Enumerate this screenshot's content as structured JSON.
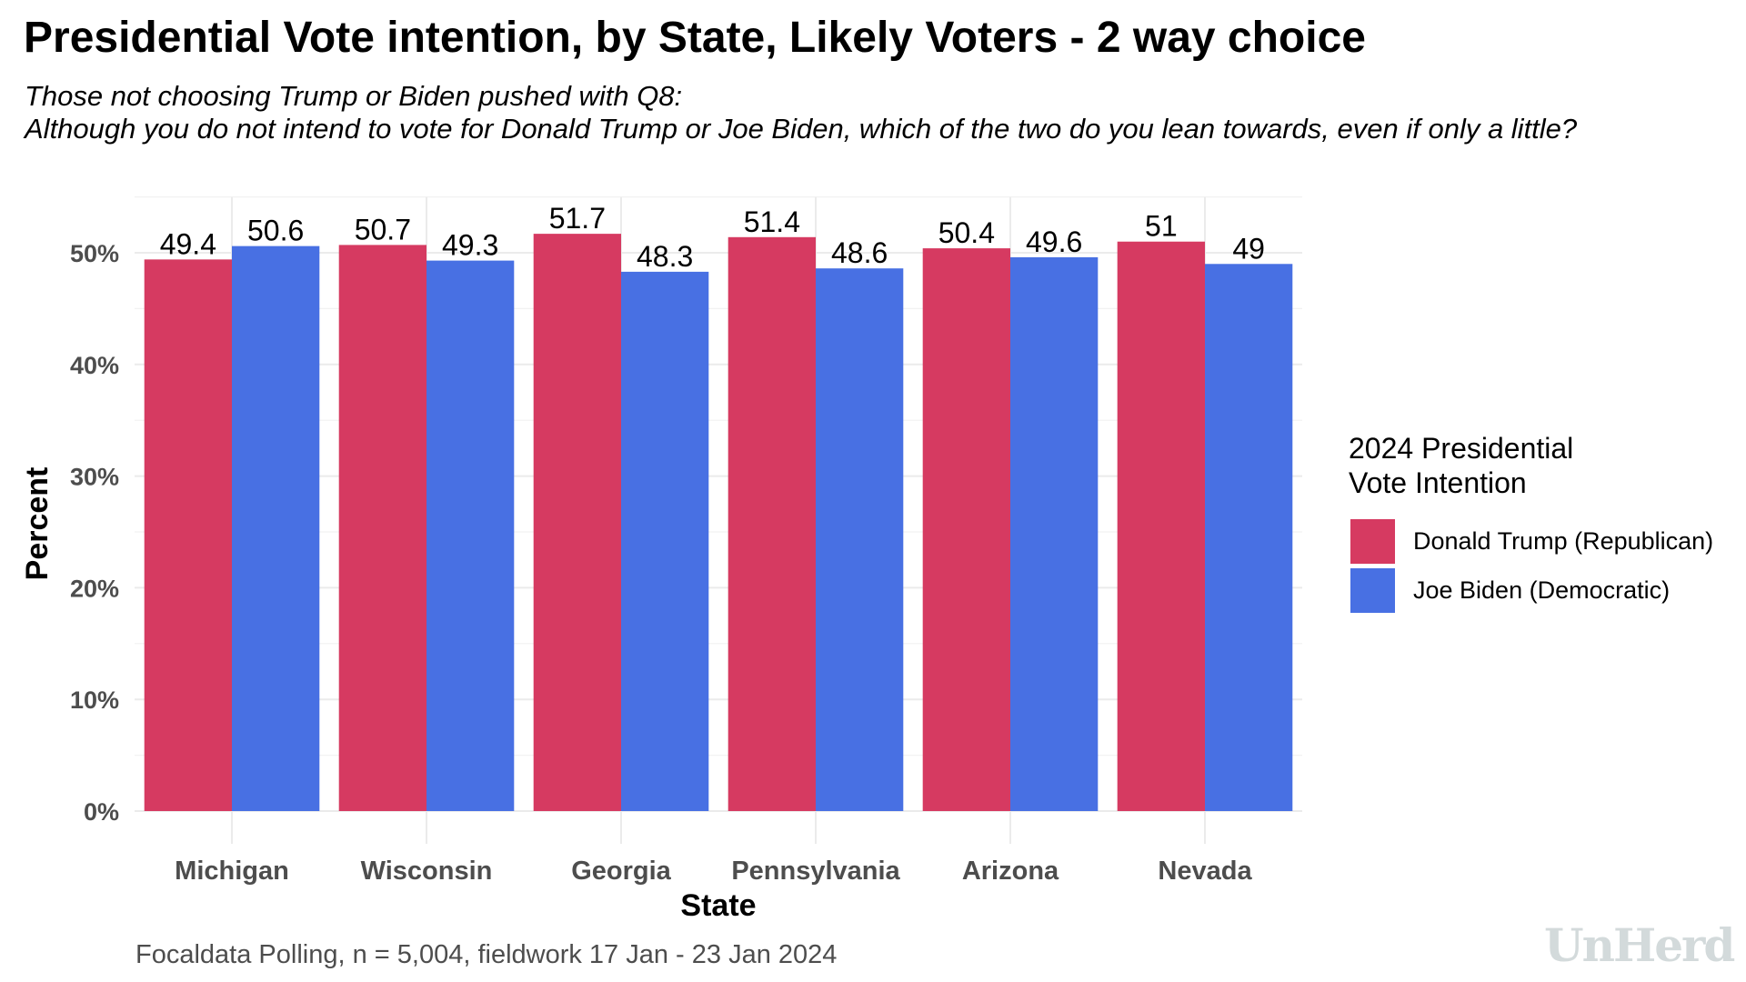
{
  "header": {
    "title": "Presidential Vote intention, by State, Likely Voters - 2 way choice",
    "subtitle_line1": "Those not choosing Trump or Biden pushed with Q8:",
    "subtitle_line2": "Although you do not intend to vote for Donald Trump or Joe Biden, which of the two do you lean towards, even if only a little?"
  },
  "legend": {
    "title_line1": "2024 Presidential",
    "title_line2": "Vote Intention",
    "items": [
      {
        "label": "Donald Trump (Republican)",
        "color": "#d63a61"
      },
      {
        "label": "Joe Biden (Democratic)",
        "color": "#4870e3"
      }
    ]
  },
  "footer": {
    "caption": "Focaldata Polling, n = 5,004, fieldwork 17 Jan - 23 Jan 2024",
    "logo": "UnHerd"
  },
  "chart_data": {
    "type": "bar",
    "title": "Presidential Vote intention, by State, Likely Voters - 2 way choice",
    "subtitle": "Those not choosing Trump or Biden pushed with Q8: Although you do not intend to vote for Donald Trump or Joe Biden, which of the two do you lean towards, even if only a little?",
    "xlabel": "State",
    "ylabel": "Percent",
    "categories": [
      "Michigan",
      "Wisconsin",
      "Georgia",
      "Pennsylvania",
      "Arizona",
      "Nevada"
    ],
    "series": [
      {
        "name": "Donald Trump (Republican)",
        "color": "#d63a61",
        "values": [
          49.4,
          50.7,
          51.7,
          51.4,
          50.4,
          51
        ]
      },
      {
        "name": "Joe Biden (Democratic)",
        "color": "#4870e3",
        "values": [
          50.6,
          49.3,
          48.3,
          48.6,
          49.6,
          49
        ]
      }
    ],
    "data_labels": [
      [
        "49.4",
        "50.7",
        "51.7",
        "51.4",
        "50.4",
        "51"
      ],
      [
        "50.6",
        "49.3",
        "48.3",
        "48.6",
        "49.6",
        "49"
      ]
    ],
    "yticks": [
      0,
      10,
      20,
      30,
      40,
      50
    ],
    "ytick_labels": [
      "0%",
      "10%",
      "20%",
      "30%",
      "40%",
      "50%"
    ],
    "ylim": [
      0,
      54
    ],
    "grid": true,
    "legend_position": "right",
    "legend_title": "2024 Presidential Vote Intention",
    "caption": "Focaldata Polling, n = 5,004, fieldwork 17 Jan - 23 Jan 2024"
  }
}
